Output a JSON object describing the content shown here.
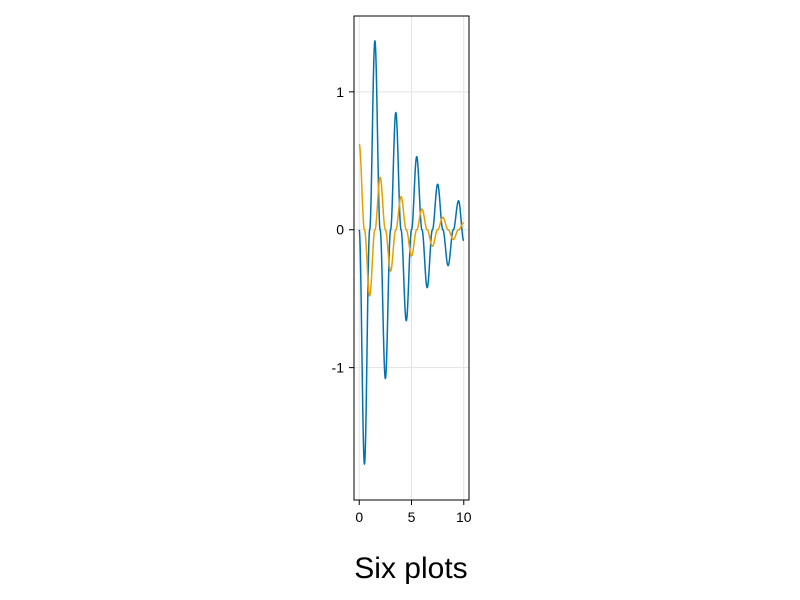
{
  "caption": "Six plots",
  "colors": {
    "background": "#ffffff",
    "axis_frame": "#000000",
    "grid": "#e3e3e3",
    "series_1": "#0072b2",
    "series_2": "#e69f00"
  },
  "chart_data": {
    "type": "line",
    "title": "",
    "xlabel": "",
    "ylabel": "",
    "xlim": [
      -0.5,
      10.5
    ],
    "ylim": [
      -1.96,
      1.55
    ],
    "xticks": [
      0,
      5,
      10
    ],
    "xtick_labels": [
      "0",
      "5",
      "10"
    ],
    "yticks": [
      -1,
      0,
      1
    ],
    "ytick_labels": [
      "-1",
      "0",
      "1"
    ],
    "grid": true,
    "legend": "none",
    "series": [
      {
        "color": "#0072b2",
        "x": [
          0.0,
          0.5,
          1.0,
          1.5,
          2.0,
          2.5,
          3.0,
          3.5,
          4.0,
          4.5,
          5.0,
          5.5,
          6.0,
          6.5,
          7.0,
          7.5,
          8.0,
          8.5,
          9.0,
          9.5,
          10.0
        ],
        "y": [
          0.0,
          -1.7,
          0.0,
          1.37,
          0.0,
          -1.08,
          0.0,
          0.85,
          0.0,
          -0.66,
          0.0,
          0.53,
          0.0,
          -0.42,
          0.0,
          0.33,
          0.0,
          -0.26,
          0.0,
          0.21,
          -0.08
        ]
      },
      {
        "color": "#e69f00",
        "x": [
          0.0,
          0.5,
          1.0,
          1.5,
          2.0,
          2.5,
          3.0,
          3.5,
          4.0,
          4.5,
          5.0,
          5.5,
          6.0,
          6.5,
          7.0,
          7.5,
          8.0,
          8.5,
          9.0,
          9.5,
          10.0
        ],
        "y": [
          0.62,
          0.0,
          -0.48,
          0.0,
          0.38,
          0.0,
          -0.3,
          0.0,
          0.24,
          0.0,
          -0.19,
          0.0,
          0.15,
          0.0,
          -0.12,
          0.0,
          0.09,
          0.0,
          -0.07,
          0.0,
          0.05
        ]
      }
    ]
  }
}
